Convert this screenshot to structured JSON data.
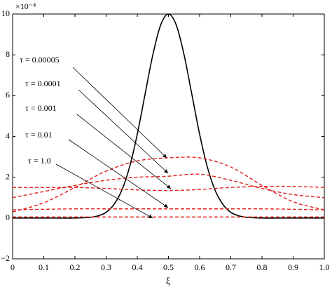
{
  "chart_data": {
    "type": "line",
    "xlabel": "ξ",
    "y_scale_label": "×10⁻⁴",
    "xlim": [
      0,
      1
    ],
    "ylim": [
      -2,
      10
    ],
    "xticks": [
      0,
      0.1,
      0.2,
      0.3,
      0.4,
      0.5,
      0.6,
      0.7,
      0.8,
      0.9,
      {
        "value": 1,
        "label": "1.0"
      }
    ],
    "yticks": [
      {
        "value": -2,
        "label": "−2"
      },
      0,
      2,
      4,
      6,
      8,
      10
    ],
    "series": [
      {
        "color": "#000000",
        "style": "solid",
        "x": [
          0,
          0.1,
          0.2,
          0.25,
          0.275,
          0.3,
          0.325,
          0.35,
          0.375,
          0.4,
          0.425,
          0.45,
          0.475,
          0.5,
          0.525,
          0.55,
          0.575,
          0.6,
          0.625,
          0.65,
          0.675,
          0.7,
          0.725,
          0.75,
          0.8,
          0.9,
          1
        ],
        "values": [
          0,
          0,
          0,
          0.04,
          0.11,
          0.28,
          0.66,
          1.35,
          2.49,
          4.11,
          6.07,
          8.01,
          9.46,
          10,
          9.46,
          8.01,
          6.07,
          4.11,
          2.49,
          1.35,
          0.66,
          0.28,
          0.11,
          0.04,
          0,
          0,
          0
        ]
      },
      {
        "color": "#e0201b",
        "style": "dashed",
        "x": [
          0,
          0.1,
          0.2,
          0.3,
          0.4,
          0.5,
          0.6,
          0.7,
          0.8,
          0.9,
          1
        ],
        "values": [
          0.3,
          0.75,
          1.5,
          2.3,
          2.8,
          2.95,
          2.95,
          2.5,
          1.6,
          0.8,
          0.4
        ]
      },
      {
        "color": "#e0201b",
        "style": "dashed",
        "x": [
          0,
          0.1,
          0.2,
          0.3,
          0.4,
          0.5,
          0.6,
          0.7,
          0.8,
          0.9,
          1
        ],
        "values": [
          1.0,
          1.3,
          1.6,
          1.85,
          2.0,
          2.05,
          2.15,
          1.85,
          1.45,
          1.15,
          1.0
        ]
      },
      {
        "color": "#e0201b",
        "style": "dashed",
        "x": [
          0,
          0.1,
          0.2,
          0.3,
          0.4,
          0.5,
          0.6,
          0.7,
          0.8,
          0.9,
          1
        ],
        "values": [
          1.5,
          1.5,
          1.5,
          1.45,
          1.38,
          1.35,
          1.4,
          1.5,
          1.55,
          1.55,
          1.5
        ]
      },
      {
        "color": "#e0201b",
        "style": "dashed",
        "x": [
          0,
          0.1,
          0.2,
          0.3,
          0.4,
          0.5,
          0.6,
          0.7,
          0.8,
          0.9,
          1
        ],
        "values": [
          0.4,
          0.43,
          0.45,
          0.45,
          0.45,
          0.45,
          0.45,
          0.45,
          0.45,
          0.43,
          0.4
        ]
      },
      {
        "color": "#e0201b",
        "style": "dashed",
        "x": [
          0,
          0.1,
          0.2,
          0.3,
          0.4,
          0.5,
          0.6,
          0.7,
          0.8,
          0.9,
          1
        ],
        "values": [
          0.05,
          0.05,
          0.05,
          0.05,
          0.05,
          0.05,
          0.05,
          0.05,
          0.05,
          0.05,
          0.05
        ]
      }
    ],
    "annotations": [
      "τ = 0.00005",
      "τ = 0.0001",
      "τ = 0.001",
      "τ = 0.01",
      "τ = 1.0"
    ]
  }
}
